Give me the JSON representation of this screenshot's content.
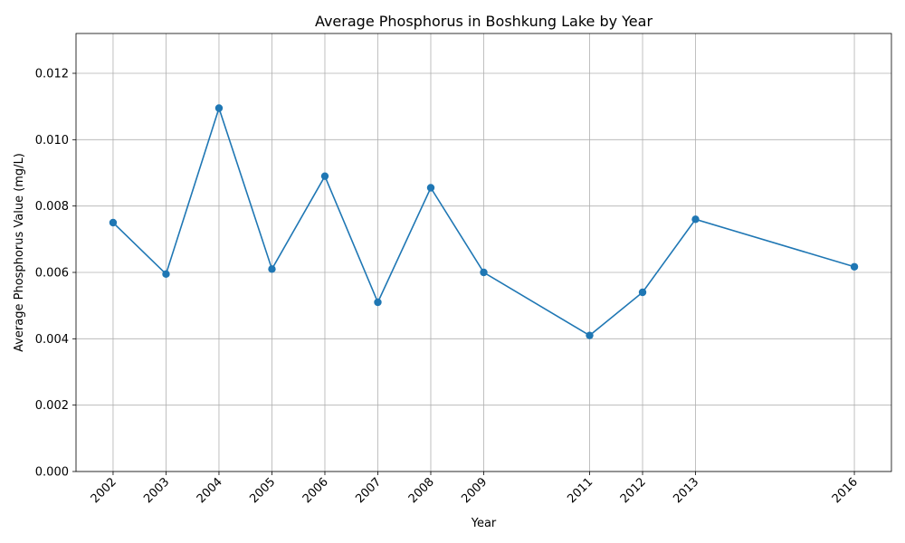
{
  "chart_data": {
    "type": "line",
    "title": "Average Phosphorus in Boshkung Lake by Year",
    "xlabel": "Year",
    "ylabel": "Average Phosphorus Value (mg/L)",
    "x": [
      2002,
      2003,
      2004,
      2005,
      2006,
      2007,
      2008,
      2009,
      2011,
      2012,
      2013,
      2016
    ],
    "series": [
      {
        "values": [
          0.0075,
          0.00595,
          0.01095,
          0.0061,
          0.0089,
          0.0051,
          0.00855,
          0.006,
          0.0041,
          0.0054,
          0.0076,
          0.00617
        ],
        "color": "#1f77b4",
        "marker": "circle"
      }
    ],
    "xticks": [
      "2002",
      "2003",
      "2004",
      "2005",
      "2006",
      "2007",
      "2008",
      "2009",
      "2011",
      "2012",
      "2013",
      "2016"
    ],
    "yticks": [
      "0.000",
      "0.002",
      "0.004",
      "0.006",
      "0.008",
      "0.010",
      "0.012"
    ],
    "ytick_values": [
      0,
      0.002,
      0.004,
      0.006,
      0.008,
      0.01,
      0.012
    ],
    "xlim": [
      2001.3,
      2016.7
    ],
    "ylim": [
      0,
      0.0132
    ],
    "grid": true,
    "legend": "none"
  }
}
